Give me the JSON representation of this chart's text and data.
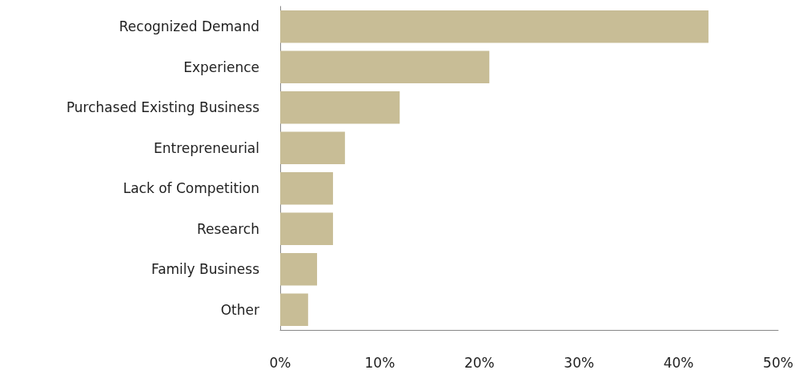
{
  "chart_data": {
    "type": "bar",
    "orientation": "horizontal",
    "categories": [
      "Recognized Demand",
      "Experience",
      "Purchased Existing Business",
      "Entrepreneurial",
      "Lack of Competition",
      "Research",
      "Family Business",
      "Other"
    ],
    "values": [
      43,
      21,
      12,
      6.5,
      5.3,
      5.3,
      3.7,
      2.8
    ],
    "color": "#c8bd96",
    "xlim": [
      0,
      50
    ],
    "xticks": [
      {
        "value": 0,
        "label": "0%"
      },
      {
        "value": 10,
        "label": "10%"
      },
      {
        "value": 20,
        "label": "20%"
      },
      {
        "value": 30,
        "label": "30%"
      },
      {
        "value": 40,
        "label": "40%"
      },
      {
        "value": 50,
        "label": "50%"
      }
    ],
    "grid": false
  }
}
